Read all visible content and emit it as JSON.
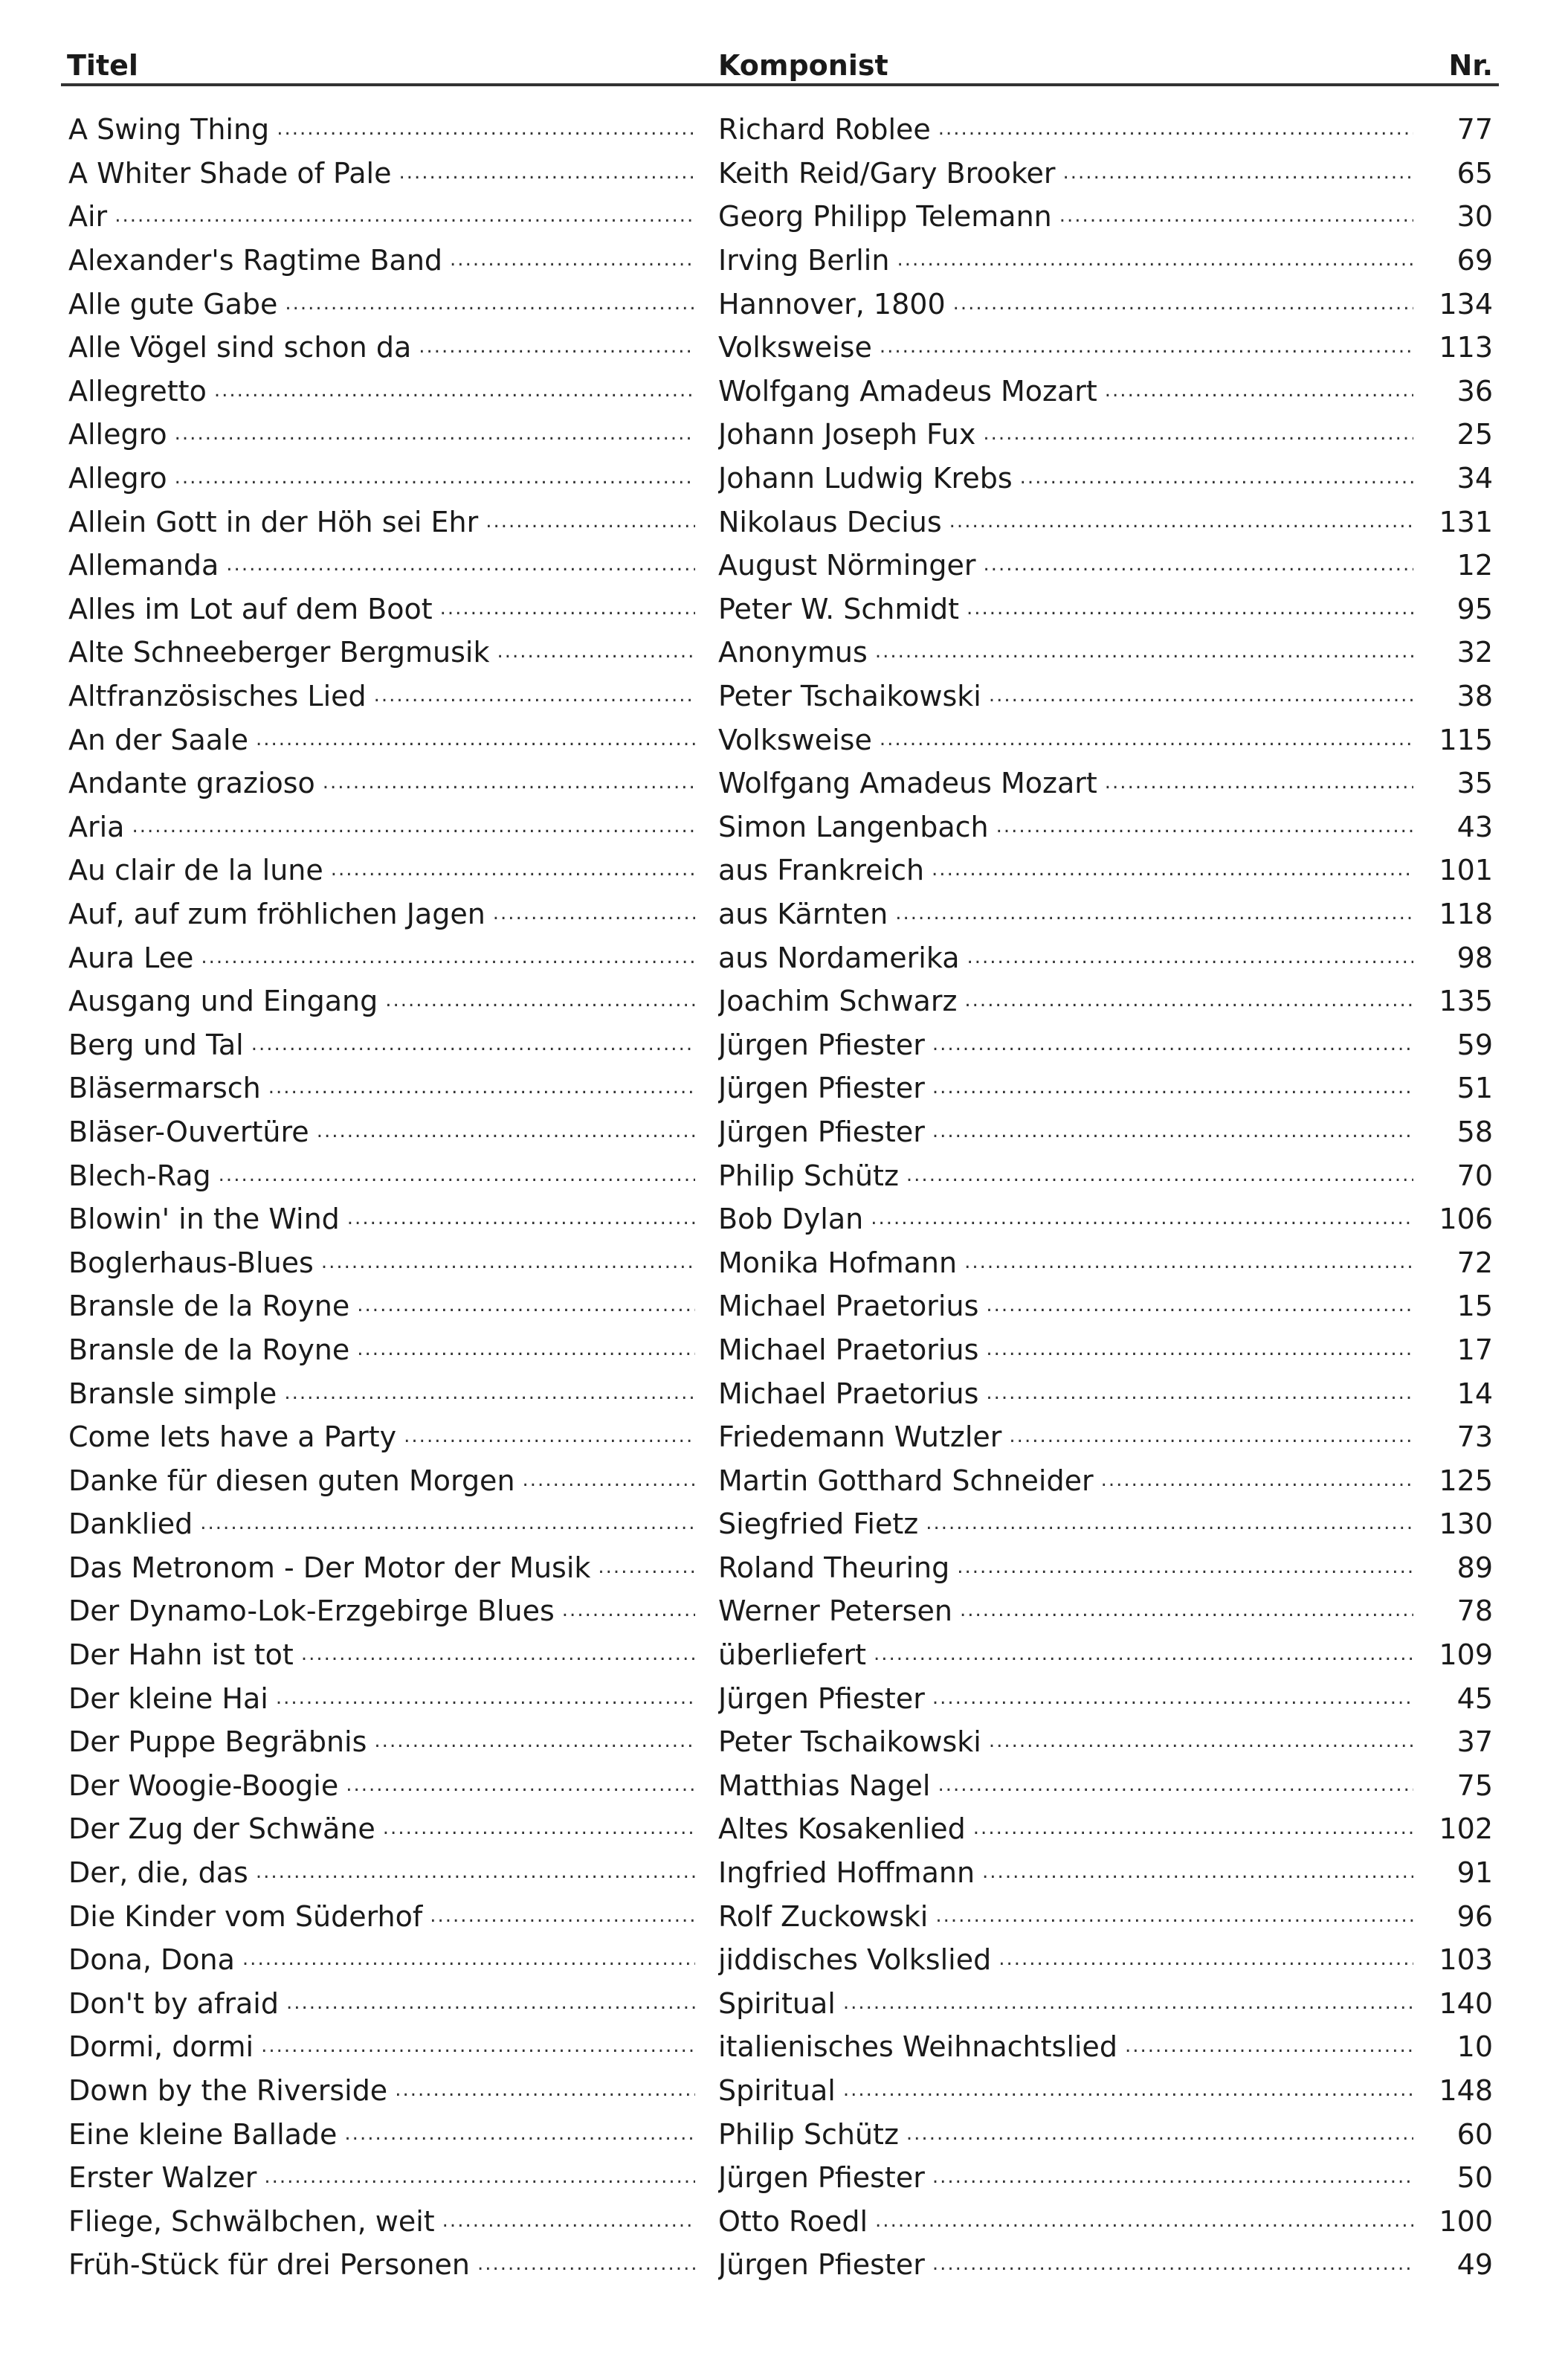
{
  "header": {
    "title": "Titel",
    "composer": "Komponist",
    "number": "Nr."
  },
  "rows": [
    [
      "A Swing Thing",
      "Richard Roblee",
      "77"
    ],
    [
      "A Whiter Shade of Pale",
      "Keith Reid/Gary Brooker",
      "65"
    ],
    [
      "Air",
      "Georg Philipp Telemann",
      "30"
    ],
    [
      "Alexander's Ragtime Band",
      "Irving Berlin",
      "69"
    ],
    [
      "Alle gute Gabe",
      "Hannover, 1800",
      "134"
    ],
    [
      "Alle Vögel sind schon da",
      "Volksweise",
      "113"
    ],
    [
      "Allegretto",
      "Wolfgang Amadeus Mozart",
      "36"
    ],
    [
      "Allegro",
      "Johann Joseph Fux",
      "25"
    ],
    [
      "Allegro",
      "Johann Ludwig Krebs",
      "34"
    ],
    [
      "Allein Gott in der Höh sei Ehr",
      "Nikolaus Decius",
      "131"
    ],
    [
      "Allemanda",
      "August Nörminger",
      "12"
    ],
    [
      "Alles im Lot auf dem Boot",
      "Peter W. Schmidt",
      "95"
    ],
    [
      "Alte Schneeberger Bergmusik",
      "Anonymus",
      "32"
    ],
    [
      "Altfranzösisches Lied",
      "Peter Tschaikowski",
      "38"
    ],
    [
      "An der Saale",
      "Volksweise",
      "115"
    ],
    [
      "Andante grazioso",
      "Wolfgang Amadeus Mozart",
      "35"
    ],
    [
      "Aria",
      "Simon Langenbach",
      "43"
    ],
    [
      "Au clair de la lune",
      "aus Frankreich",
      "101"
    ],
    [
      "Auf, auf zum fröhlichen Jagen",
      "aus Kärnten",
      "118"
    ],
    [
      "Aura Lee",
      "aus Nordamerika",
      "98"
    ],
    [
      "Ausgang und Eingang",
      "Joachim Schwarz",
      "135"
    ],
    [
      "Berg und Tal",
      "Jürgen Pfiester",
      "59"
    ],
    [
      "Bläsermarsch",
      "Jürgen Pfiester",
      "51"
    ],
    [
      "Bläser-Ouvertüre",
      "Jürgen Pfiester",
      "58"
    ],
    [
      "Blech-Rag",
      "Philip Schütz",
      "70"
    ],
    [
      "Blowin' in the Wind",
      "Bob Dylan",
      "106"
    ],
    [
      "Boglerhaus-Blues",
      "Monika Hofmann",
      "72"
    ],
    [
      "Bransle de la Royne",
      "Michael Praetorius",
      "15"
    ],
    [
      "Bransle de la Royne",
      "Michael Praetorius",
      "17"
    ],
    [
      "Bransle simple",
      "Michael Praetorius",
      "14"
    ],
    [
      "Come lets have a Party",
      "Friedemann Wutzler",
      "73"
    ],
    [
      "Danke für diesen guten Morgen",
      "Martin Gotthard Schneider",
      "125"
    ],
    [
      "Danklied",
      "Siegfried Fietz",
      "130"
    ],
    [
      "Das Metronom - Der Motor der Musik",
      "Roland Theuring",
      "89"
    ],
    [
      "Der Dynamo-Lok-Erzgebirge Blues",
      "Werner Petersen",
      "78"
    ],
    [
      "Der Hahn ist tot",
      "überliefert",
      "109"
    ],
    [
      "Der kleine Hai",
      "Jürgen Pfiester",
      "45"
    ],
    [
      "Der Puppe Begräbnis",
      "Peter Tschaikowski",
      "37"
    ],
    [
      "Der Woogie-Boogie",
      "Matthias Nagel",
      "75"
    ],
    [
      "Der Zug der Schwäne",
      "Altes Kosakenlied",
      "102"
    ],
    [
      "Der, die, das",
      "Ingfried Hoffmann",
      "91"
    ],
    [
      "Die Kinder vom Süderhof",
      "Rolf Zuckowski",
      "96"
    ],
    [
      "Dona, Dona",
      "jiddisches Volkslied",
      "103"
    ],
    [
      "Don't by afraid",
      "Spiritual",
      "140"
    ],
    [
      "Dormi, dormi",
      "italienisches Weihnachtslied",
      "10"
    ],
    [
      "Down by the Riverside",
      "Spiritual",
      "148"
    ],
    [
      "Eine kleine Ballade",
      "Philip Schütz",
      "60"
    ],
    [
      "Erster Walzer",
      "Jürgen Pfiester",
      "50"
    ],
    [
      "Fliege, Schwälbchen, weit",
      "Otto Roedl",
      "100"
    ],
    [
      "Früh-Stück für drei Personen",
      "Jürgen Pfiester",
      "49"
    ]
  ]
}
